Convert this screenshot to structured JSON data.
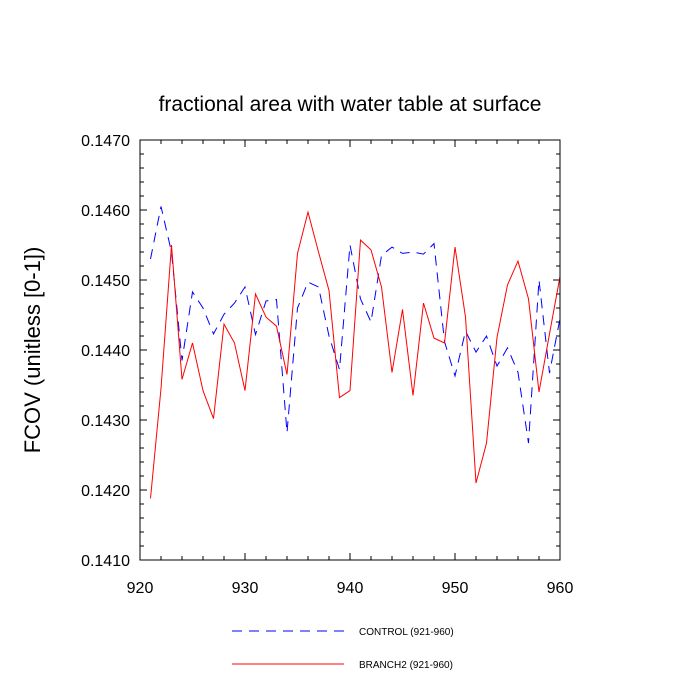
{
  "chart_data": {
    "type": "line",
    "title": "fractional area with water table at surface",
    "xlabel": "",
    "ylabel": "FCOV  (unitless [0-1])",
    "xlim": [
      920,
      960
    ],
    "ylim": [
      0.141,
      0.147
    ],
    "xticks": [
      920,
      930,
      940,
      950,
      960
    ],
    "xtick_labels": [
      "920",
      "930",
      "940",
      "950",
      "960"
    ],
    "yticks": [
      0.141,
      0.142,
      0.143,
      0.144,
      0.145,
      0.146,
      0.147
    ],
    "ytick_labels": [
      "0.1410",
      "0.1420",
      "0.1430",
      "0.1440",
      "0.1450",
      "0.1460",
      "0.1470"
    ],
    "grid": false,
    "legend_position": "bottom",
    "x": [
      921,
      922,
      923,
      924,
      925,
      926,
      927,
      928,
      929,
      930,
      931,
      932,
      933,
      934,
      935,
      936,
      937,
      938,
      939,
      940,
      941,
      942,
      943,
      944,
      945,
      946,
      947,
      948,
      949,
      950,
      951,
      952,
      953,
      954,
      955,
      956,
      957,
      958,
      959,
      960
    ],
    "series": [
      {
        "name": "CONTROL (921-960)",
        "color": "#0000ff",
        "dash": "dashed",
        "values": [
          0.1453,
          0.14605,
          0.1454,
          0.14385,
          0.14483,
          0.1446,
          0.14423,
          0.14451,
          0.14467,
          0.1449,
          0.14422,
          0.1447,
          0.14472,
          0.14282,
          0.1446,
          0.14497,
          0.1449,
          0.1442,
          0.14372,
          0.1455,
          0.14473,
          0.1444,
          0.14535,
          0.14547,
          0.14538,
          0.1454,
          0.14537,
          0.14552,
          0.14412,
          0.14363,
          0.14427,
          0.14397,
          0.1442,
          0.14377,
          0.14403,
          0.14368,
          0.14267,
          0.145,
          0.14367,
          0.14445
        ]
      },
      {
        "name": "BRANCH2 (921-960)",
        "color": "#ff0000",
        "dash": "solid",
        "values": [
          0.14188,
          0.14345,
          0.1455,
          0.14358,
          0.1441,
          0.14342,
          0.14302,
          0.14437,
          0.1441,
          0.14342,
          0.1448,
          0.14447,
          0.14434,
          0.14365,
          0.14538,
          0.14597,
          0.1454,
          0.14485,
          0.14332,
          0.14342,
          0.14557,
          0.14543,
          0.1449,
          0.14368,
          0.14458,
          0.14335,
          0.14467,
          0.14417,
          0.1441,
          0.14547,
          0.14447,
          0.1421,
          0.14267,
          0.14418,
          0.14493,
          0.14527,
          0.14473,
          0.1434,
          0.14423,
          0.14505
        ]
      }
    ]
  }
}
